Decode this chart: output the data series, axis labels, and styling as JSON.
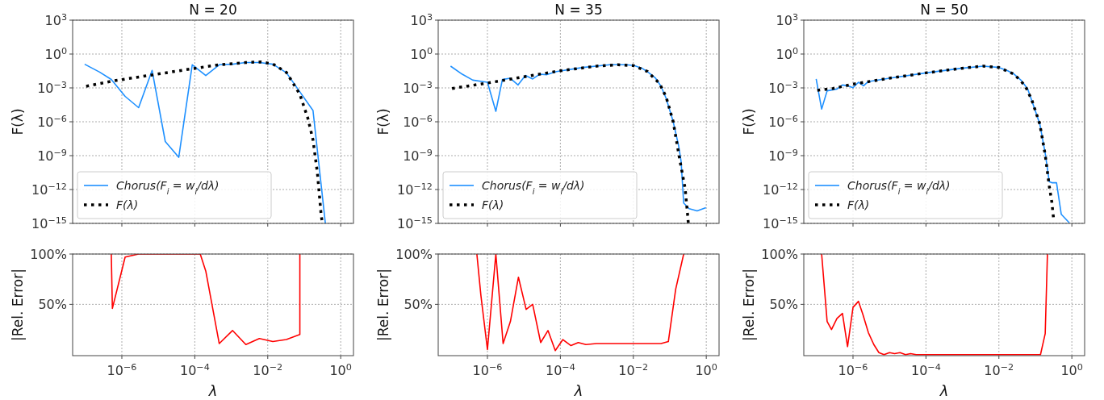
{
  "chart_data": [
    {
      "type": "line",
      "title": "N = 20",
      "ylabel": "F(λ)",
      "log": "xy",
      "grid": true,
      "legend": "bottom left",
      "tick_labels": "y",
      "xlim": [
        4.47e-08,
        2.24
      ],
      "ylim": [
        1e-15,
        1000
      ],
      "xticks": [
        {
          "value": 1e-06,
          "label": null
        },
        {
          "value": 0.0001,
          "label": null
        },
        {
          "value": 0.01,
          "label": null
        },
        {
          "value": 1,
          "label": null
        }
      ],
      "yticks": [
        {
          "value": 1000,
          "label": "10$^{3}$"
        },
        {
          "value": 1,
          "label": "10$^{0}$"
        },
        {
          "value": 0.001,
          "label": "10$^{−3}$"
        },
        {
          "value": 1e-06,
          "label": "10$^{−6}$"
        },
        {
          "value": 1e-09,
          "label": "10$^{−9}$"
        },
        {
          "value": 1e-12,
          "label": "10$^{−12}$"
        },
        {
          "value": 1e-15,
          "label": "10$^{−15}$"
        }
      ],
      "series": [
        {
          "name": "Chorus(F$_{i}$ = w$_{i}$/dλ)",
          "color": "#1e90ff",
          "line_style": "solid",
          "x": [
            9.55e-08,
            2.45e-07,
            5.13e-07,
            1.23e-06,
            2.88e-06,
            6.76e-06,
            1.55e-05,
            3.63e-05,
            8.51e-05,
            0.0002,
            0.000468,
            0.00108,
            0.00251,
            0.00589,
            0.0138,
            0.0324,
            0.0759,
            0.174,
            0.38
          ],
          "values": [
            0.126,
            0.0251,
            0.00562,
            0.000178,
            1.78e-05,
            0.0355,
            1.78e-08,
            7.08e-10,
            0.112,
            0.0126,
            0.112,
            0.126,
            0.178,
            0.178,
            0.126,
            0.0224,
            0.000447,
            1e-05,
            1e-15
          ]
        },
        {
          "name": "F(λ)",
          "color": "#000000",
          "line_style": "dotted",
          "x": [
            1.05e-07,
            5.37e-07,
            6.76e-06,
            8.51e-05,
            0.000468,
            0.00251,
            0.00646,
            0.0138,
            0.0324,
            0.0759,
            0.126,
            0.174,
            0.229,
            0.292,
            0.316
          ],
          "values": [
            0.00141,
            0.00398,
            0.0141,
            0.0501,
            0.112,
            0.178,
            0.2,
            0.132,
            0.024,
            0.000269,
            2e-06,
            2.51e-08,
            3.16e-11,
            5.01e-15,
            1e-15
          ]
        }
      ]
    },
    {
      "type": "line",
      "title": "N = 35",
      "ylabel": "F(λ)",
      "log": "xy",
      "grid": true,
      "legend": "bottom left",
      "tick_labels": "y",
      "xlim": [
        4.47e-08,
        2.24
      ],
      "ylim": [
        1e-15,
        1000
      ],
      "xticks": [
        {
          "value": 1e-06,
          "label": null
        },
        {
          "value": 0.0001,
          "label": null
        },
        {
          "value": 0.01,
          "label": null
        },
        {
          "value": 1,
          "label": null
        }
      ],
      "yticks": [
        {
          "value": 1000,
          "label": "10$^{3}$"
        },
        {
          "value": 1,
          "label": "10$^{0}$"
        },
        {
          "value": 0.001,
          "label": "10$^{−3}$"
        },
        {
          "value": 1e-06,
          "label": "10$^{−6}$"
        },
        {
          "value": 1e-09,
          "label": "10$^{−9}$"
        },
        {
          "value": 1e-12,
          "label": "10$^{−12}$"
        },
        {
          "value": 1e-15,
          "label": "10$^{−15}$"
        }
      ],
      "series": [
        {
          "name": "Chorus(F$_{i}$ = w$_{i}$/dλ)",
          "color": "#1e90ff",
          "line_style": "solid",
          "x": [
            9.77e-08,
            2.04e-07,
            3.98e-07,
            1e-06,
            1.7e-06,
            2.57e-06,
            4.17e-06,
            6.92e-06,
            1.1e-05,
            1.74e-05,
            2.69e-05,
            4.27e-05,
            7.76e-05,
            0.000417,
            0.00229,
            0.00631,
            0.0105,
            0.0174,
            0.0269,
            0.0407,
            0.0575,
            0.0794,
            0.123,
            0.174,
            0.204,
            0.24,
            0.339,
            0.562,
            0.977
          ],
          "values": [
            0.0851,
            0.0162,
            0.0049,
            0.00316,
            8.51e-06,
            0.0055,
            0.00724,
            0.00182,
            0.0126,
            0.00617,
            0.0162,
            0.0148,
            0.0282,
            0.0646,
            0.112,
            0.112,
            0.0955,
            0.055,
            0.0214,
            0.00724,
            0.00138,
            0.000117,
            1.12e-06,
            7.94e-09,
            3.16e-10,
            6.31e-14,
            2e-14,
            1.26e-14,
            2.51e-14
          ]
        },
        {
          "name": "F(λ)",
          "color": "#000000",
          "line_style": "dotted",
          "x": [
            1.07e-07,
            1e-06,
            1e-05,
            0.0001,
            0.001,
            0.0038,
            0.01,
            0.0245,
            0.0525,
            0.0794,
            0.123,
            0.186,
            0.263,
            0.309,
            0.322
          ],
          "values": [
            0.000891,
            0.00269,
            0.00955,
            0.0331,
            0.0851,
            0.112,
            0.0955,
            0.0282,
            0.0024,
            0.000155,
            1.12e-06,
            5.01e-10,
            1.26e-12,
            5.01e-15,
            1e-15
          ]
        }
      ]
    },
    {
      "type": "line",
      "title": "N = 50",
      "ylabel": "F(λ)",
      "log": "xy",
      "grid": true,
      "legend": "bottom left",
      "tick_labels": "y",
      "xlim": [
        4.47e-08,
        2.24
      ],
      "ylim": [
        1e-15,
        1000
      ],
      "xticks": [
        {
          "value": 1e-06,
          "label": null
        },
        {
          "value": 0.0001,
          "label": null
        },
        {
          "value": 0.01,
          "label": null
        },
        {
          "value": 1,
          "label": null
        }
      ],
      "yticks": [
        {
          "value": 1000,
          "label": "10$^{3}$"
        },
        {
          "value": 1,
          "label": "10$^{0}$"
        },
        {
          "value": 0.001,
          "label": "10$^{−3}$"
        },
        {
          "value": 1e-06,
          "label": "10$^{−6}$"
        },
        {
          "value": 1e-09,
          "label": "10$^{−9}$"
        },
        {
          "value": 1e-12,
          "label": "10$^{−12}$"
        },
        {
          "value": 1e-15,
          "label": "10$^{−15}$"
        }
      ],
      "series": [
        {
          "name": "Chorus(F$_{i}$ = w$_{i}$/dλ)",
          "color": "#1e90ff",
          "line_style": "solid",
          "x": [
            9.77e-08,
            1.38e-07,
            1.95e-07,
            3.63e-07,
            5.13e-07,
            7.08e-07,
            1e-06,
            1.41e-06,
            1.95e-06,
            2.57e-06,
            1e-05,
            0.0001,
            0.000955,
            0.00372,
            0.01,
            0.0174,
            0.0263,
            0.0407,
            0.0617,
            0.0933,
            0.132,
            0.186,
            0.24,
            0.282,
            0.38,
            0.513,
            0.851
          ],
          "values": [
            0.00617,
            1.32e-05,
            0.00055,
            0.000794,
            0.00182,
            0.00155,
            0.00105,
            0.00316,
            0.00155,
            0.00355,
            0.00724,
            0.0214,
            0.055,
            0.0851,
            0.0646,
            0.0331,
            0.0162,
            0.00468,
            0.000794,
            1.74e-05,
            6.46e-07,
            1.58e-09,
            5.01e-12,
            3.98e-12,
            3.98e-12,
            6.31e-15,
            1.12e-15
          ]
        },
        {
          "name": "F(λ)",
          "color": "#000000",
          "line_style": "dotted",
          "x": [
            1.05e-07,
            2.82e-07,
            1e-06,
            1e-05,
            0.0001,
            0.000955,
            0.00372,
            0.01,
            0.0263,
            0.0525,
            0.0794,
            0.132,
            0.186,
            0.24,
            0.282,
            0.316
          ],
          "values": [
            0.000617,
            0.000891,
            0.00214,
            0.00724,
            0.0214,
            0.055,
            0.0851,
            0.0646,
            0.0162,
            0.00155,
            8.91e-05,
            6.46e-07,
            1.17e-09,
            2e-12,
            7.94e-14,
            2.51e-15
          ]
        }
      ]
    },
    {
      "type": "line",
      "xlabel": "λ",
      "ylabel": "|Rel. Error|",
      "log": "x",
      "grid": true,
      "xlim": [
        4.47e-08,
        2.24
      ],
      "ylim": [
        -1,
        100
      ],
      "xticks": [
        {
          "value": 1e-06,
          "label": "10$^{−6}$"
        },
        {
          "value": 0.0001,
          "label": "10$^{−4}$"
        },
        {
          "value": 0.01,
          "label": "10$^{−2}$"
        },
        {
          "value": 1,
          "label": "10$^{0}$"
        }
      ],
      "yticks": [
        {
          "value": 50,
          "label": "50%"
        },
        {
          "value": 100,
          "label": "100%"
        }
      ],
      "series": [
        {
          "color": "#ff0000",
          "line_style": "solid",
          "x": [
            5.13e-07,
            5.5e-07,
            1.23e-06,
            2.88e-06,
            0.000141,
            0.0002,
            0.000468,
            0.00108,
            0.00251,
            0.00589,
            0.0138,
            0.0324,
            0.0759,
            0.0759
          ],
          "values": [
            100,
            46,
            97,
            100,
            100,
            83,
            11,
            24,
            10,
            16,
            13,
            15,
            20,
            100
          ]
        }
      ]
    },
    {
      "type": "line",
      "xlabel": "λ",
      "ylabel": "|Rel. Error|",
      "log": "x",
      "grid": true,
      "xlim": [
        4.47e-08,
        2.24
      ],
      "ylim": [
        -1,
        100
      ],
      "xticks": [
        {
          "value": 1e-06,
          "label": "10$^{−6}$"
        },
        {
          "value": 0.0001,
          "label": "10$^{−4}$"
        },
        {
          "value": 0.01,
          "label": "10$^{−2}$"
        },
        {
          "value": 1,
          "label": "10$^{0}$"
        }
      ],
      "yticks": [
        {
          "value": 50,
          "label": "50%"
        },
        {
          "value": 100,
          "label": "100%"
        }
      ],
      "series": [
        {
          "color": "#ff0000",
          "line_style": "solid",
          "x": [
            5.13e-07,
            6.61e-07,
            1e-06,
            1.7e-06,
            2.69e-06,
            4.27e-06,
            7.08e-06,
            1.15e-05,
            1.74e-05,
            2.88e-05,
            4.57e-05,
            7.24e-05,
            0.000117,
            0.000195,
            0.000309,
            0.000501,
            0.000977,
            0.0123,
            0.0575,
            0.0912,
            0.145,
            0.24
          ],
          "values": [
            100,
            59,
            5,
            100,
            11,
            33,
            77,
            45,
            50,
            12,
            24,
            4,
            15,
            9,
            12,
            10,
            11,
            11,
            11,
            13,
            65,
            100
          ]
        }
      ]
    },
    {
      "type": "line",
      "xlabel": "λ",
      "ylabel": "|Rel. Error|",
      "log": "x",
      "grid": true,
      "xlim": [
        4.47e-08,
        2.24
      ],
      "ylim": [
        -1,
        100
      ],
      "xticks": [
        {
          "value": 1e-06,
          "label": "10$^{−6}$"
        },
        {
          "value": 0.0001,
          "label": "10$^{−4}$"
        },
        {
          "value": 0.01,
          "label": "10$^{−2}$"
        },
        {
          "value": 1,
          "label": "10$^{0}$"
        }
      ],
      "yticks": [
        {
          "value": 50,
          "label": "50%"
        },
        {
          "value": 100,
          "label": "100%"
        }
      ],
      "series": [
        {
          "color": "#ff0000",
          "line_style": "solid",
          "x": [
            1.38e-07,
            1.95e-07,
            2.57e-07,
            3.63e-07,
            5.13e-07,
            7.08e-07,
            1e-06,
            1.41e-06,
            1.86e-06,
            2.63e-06,
            3.72e-06,
            5.13e-06,
            7.08e-06,
            1e-05,
            1.38e-05,
            1.95e-05,
            2.75e-05,
            3.8e-05,
            5.37e-05,
            8.91e-05,
            0.00049,
            0.0145,
            0.138,
            0.186,
            0.214
          ],
          "values": [
            100,
            33,
            25,
            36,
            41,
            8,
            47,
            53,
            40,
            22,
            10,
            2,
            0,
            2,
            1,
            2,
            0,
            1,
            0,
            0,
            0,
            0,
            0,
            21,
            100
          ]
        }
      ]
    }
  ]
}
